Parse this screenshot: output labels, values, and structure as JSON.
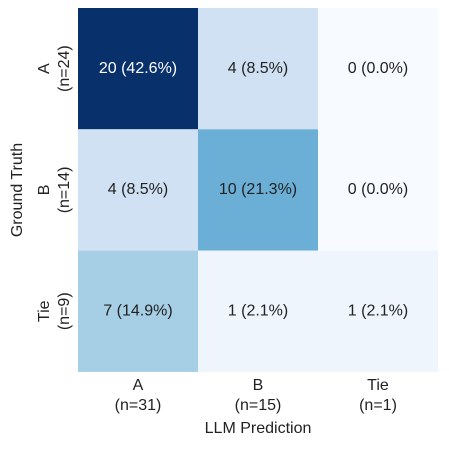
{
  "chart_data": {
    "type": "heatmap",
    "x_label": "LLM Prediction",
    "y_label": "Ground Truth",
    "x_labels": [
      [
        "A",
        "(n=31)"
      ],
      [
        "B",
        "(n=15)"
      ],
      [
        "Tie",
        "(n=1)"
      ]
    ],
    "y_labels": [
      [
        "A",
        "(n=24)"
      ],
      [
        "B",
        "(n=14)"
      ],
      [
        "Tie",
        "(n=9)"
      ]
    ],
    "values": [
      [
        20,
        4,
        0
      ],
      [
        4,
        10,
        0
      ],
      [
        7,
        1,
        1
      ]
    ],
    "value_labels": [
      [
        "20 (42.6%)",
        "4 (8.5%)",
        "0 (0.0%)"
      ],
      [
        "4 (8.5%)",
        "10 (21.3%)",
        "0 (0.0%)"
      ],
      [
        "7 (14.9%)",
        "1 (2.1%)",
        "1 (2.1%)"
      ]
    ],
    "colors": [
      [
        "#08306b",
        "#cfe1f2",
        "#f7fbff"
      ],
      [
        "#cfe1f2",
        "#6baed6",
        "#f7fbff"
      ],
      [
        "#a6cee4",
        "#eef5fc",
        "#eef5fc"
      ]
    ]
  }
}
